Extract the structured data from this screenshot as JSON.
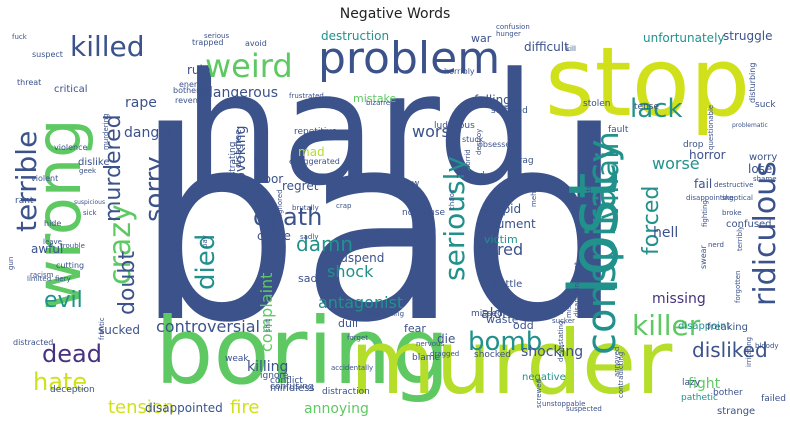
{
  "title": "Negative Words",
  "colors": {
    "navy": "#3b528b",
    "indigo": "#46327e",
    "purple": "#482878",
    "blue": "#31688e",
    "teal": "#21918c",
    "teal_light": "#1fa187",
    "green": "#5ec962",
    "lime": "#b5de2b",
    "yellow": "#d0e11c"
  },
  "words": [
    {
      "text": "bad",
      "color": "navy"
    },
    {
      "text": "hard",
      "color": "navy"
    },
    {
      "text": "boring",
      "color": "green"
    },
    {
      "text": "murder",
      "color": "lime"
    },
    {
      "text": "stop",
      "color": "yellow"
    },
    {
      "text": "wrong",
      "color": "green"
    },
    {
      "text": "lost",
      "color": "teal"
    },
    {
      "text": "problem",
      "color": "navy"
    },
    {
      "text": "conspiracy",
      "color": "teal"
    },
    {
      "text": "ridiculous",
      "color": "navy"
    },
    {
      "text": "killer",
      "color": "green"
    },
    {
      "text": "weird",
      "color": "green"
    },
    {
      "text": "killed",
      "color": "navy"
    },
    {
      "text": "terrible",
      "color": "navy"
    },
    {
      "text": "lack",
      "color": "teal"
    },
    {
      "text": "sorry",
      "color": "navy"
    },
    {
      "text": "crazy",
      "color": "green"
    },
    {
      "text": "murdered",
      "color": "navy"
    },
    {
      "text": "doubt",
      "color": "navy"
    },
    {
      "text": "death",
      "color": "navy"
    },
    {
      "text": "seriously",
      "color": "teal"
    },
    {
      "text": "died",
      "color": "teal"
    },
    {
      "text": "damn",
      "color": "teal"
    },
    {
      "text": "villain",
      "color": "teal"
    },
    {
      "text": "forced",
      "color": "teal"
    },
    {
      "text": "evil",
      "color": "teal"
    },
    {
      "text": "dead",
      "color": "indigo"
    },
    {
      "text": "hate",
      "color": "yellow"
    },
    {
      "text": "bomb",
      "color": "teal"
    },
    {
      "text": "tension",
      "color": "yellow"
    },
    {
      "text": "fire",
      "color": "yellow"
    },
    {
      "text": "disliked",
      "color": "navy"
    },
    {
      "text": "antagonist",
      "color": "teal"
    },
    {
      "text": "controversial",
      "color": "navy"
    },
    {
      "text": "worse",
      "color": "teal"
    },
    {
      "text": "shock",
      "color": "teal"
    },
    {
      "text": "hell",
      "color": "navy"
    },
    {
      "text": "fight",
      "color": "green"
    },
    {
      "text": "danger",
      "color": "navy"
    },
    {
      "text": "dangerous",
      "color": "navy"
    },
    {
      "text": "worst",
      "color": "navy"
    },
    {
      "text": "rape",
      "color": "navy"
    },
    {
      "text": "alone",
      "color": "navy"
    },
    {
      "text": "complaint",
      "color": "green"
    },
    {
      "text": "provoking",
      "color": "navy"
    },
    {
      "text": "missing",
      "color": "indigo"
    },
    {
      "text": "bored",
      "color": "navy"
    },
    {
      "text": "annoying",
      "color": "green"
    },
    {
      "text": "disappointed",
      "color": "navy"
    },
    {
      "text": "shocking",
      "color": "navy"
    },
    {
      "text": "argument",
      "color": "navy"
    },
    {
      "text": "killing",
      "color": "navy"
    },
    {
      "text": "unfortunately",
      "color": "teal"
    },
    {
      "text": "struggle",
      "color": "navy"
    },
    {
      "text": "stupid",
      "color": "navy"
    },
    {
      "text": "crime",
      "color": "navy"
    },
    {
      "text": "difficult",
      "color": "navy"
    },
    {
      "text": "destruction",
      "color": "teal"
    },
    {
      "text": "mistake",
      "color": "green"
    },
    {
      "text": "dull",
      "color": "navy"
    },
    {
      "text": "sad",
      "color": "navy"
    },
    {
      "text": "die",
      "color": "navy"
    },
    {
      "text": "waste",
      "color": "navy"
    },
    {
      "text": "odd",
      "color": "navy"
    },
    {
      "text": "fear",
      "color": "navy"
    },
    {
      "text": "victim",
      "color": "teal"
    },
    {
      "text": "regret",
      "color": "navy"
    },
    {
      "text": "war",
      "color": "navy"
    },
    {
      "text": "falling",
      "color": "navy"
    },
    {
      "text": "mad",
      "color": "lime"
    },
    {
      "text": "awful",
      "color": "navy"
    },
    {
      "text": "ruin",
      "color": "navy"
    },
    {
      "text": "lose",
      "color": "navy"
    },
    {
      "text": "fail",
      "color": "navy"
    },
    {
      "text": "horror",
      "color": "navy"
    },
    {
      "text": "suspend",
      "color": "navy"
    },
    {
      "text": "sucked",
      "color": "navy"
    },
    {
      "text": "negative",
      "color": "teal"
    },
    {
      "text": "strange",
      "color": "navy"
    },
    {
      "text": "battle",
      "color": "navy"
    },
    {
      "text": "mindless",
      "color": "navy"
    },
    {
      "text": "confused",
      "color": "navy"
    },
    {
      "text": "disappoint",
      "color": "teal"
    },
    {
      "text": "freaking",
      "color": "navy"
    },
    {
      "text": "conflict",
      "color": "navy"
    },
    {
      "text": "poor",
      "color": "navy"
    },
    {
      "text": "critical",
      "color": "navy"
    },
    {
      "text": "dislike",
      "color": "navy"
    },
    {
      "text": "worry",
      "color": "navy"
    },
    {
      "text": "deception",
      "color": "navy"
    },
    {
      "text": "bother",
      "color": "navy"
    },
    {
      "text": "failed",
      "color": "navy"
    },
    {
      "text": "lazy",
      "color": "navy"
    },
    {
      "text": "pathetic",
      "color": "teal"
    },
    {
      "text": "shocked",
      "color": "navy"
    },
    {
      "text": "blame",
      "color": "navy"
    },
    {
      "text": "missed",
      "color": "navy"
    },
    {
      "text": "ignore",
      "color": "navy"
    },
    {
      "text": "weak",
      "color": "navy"
    },
    {
      "text": "confusing",
      "color": "navy"
    },
    {
      "text": "distraction",
      "color": "navy"
    },
    {
      "text": "nonsense",
      "color": "navy"
    },
    {
      "text": "low",
      "color": "navy"
    },
    {
      "text": "ruined",
      "color": "navy"
    },
    {
      "text": "stolen",
      "color": "navy"
    },
    {
      "text": "lies",
      "color": "navy"
    },
    {
      "text": "fault",
      "color": "navy"
    },
    {
      "text": "tense",
      "color": "navy"
    },
    {
      "text": "drop",
      "color": "navy"
    },
    {
      "text": "drag",
      "color": "navy"
    },
    {
      "text": "racist",
      "color": "navy"
    },
    {
      "text": "stopped",
      "color": "navy"
    },
    {
      "text": "frustrating",
      "color": "navy"
    },
    {
      "text": "suck",
      "color": "navy"
    },
    {
      "text": "suspect",
      "color": "navy"
    },
    {
      "text": "trapped",
      "color": "navy"
    },
    {
      "text": "avoid",
      "color": "navy"
    },
    {
      "text": "disagree",
      "color": "navy"
    },
    {
      "text": "repetitive",
      "color": "navy"
    },
    {
      "text": "suffered",
      "color": "navy"
    },
    {
      "text": "ludicrous",
      "color": "navy"
    },
    {
      "text": "horribly",
      "color": "navy"
    },
    {
      "text": "stuck",
      "color": "navy"
    },
    {
      "text": "obsessed",
      "color": "navy"
    },
    {
      "text": "rant",
      "color": "navy"
    },
    {
      "text": "violent",
      "color": "navy"
    },
    {
      "text": "hide",
      "color": "navy"
    },
    {
      "text": "threat",
      "color": "navy"
    },
    {
      "text": "fuck",
      "color": "navy"
    },
    {
      "text": "bothered",
      "color": "navy"
    },
    {
      "text": "revenge",
      "color": "navy"
    },
    {
      "text": "enemy",
      "color": "navy"
    },
    {
      "text": "violence",
      "color": "navy"
    },
    {
      "text": "geek",
      "color": "navy"
    },
    {
      "text": "sick",
      "color": "navy"
    },
    {
      "text": "cutting",
      "color": "navy"
    },
    {
      "text": "limited",
      "color": "navy"
    },
    {
      "text": "fiery",
      "color": "navy"
    },
    {
      "text": "racism",
      "color": "navy"
    },
    {
      "text": "leave",
      "color": "navy"
    },
    {
      "text": "trouble",
      "color": "navy"
    },
    {
      "text": "distracted",
      "color": "navy"
    },
    {
      "text": "frantic",
      "color": "navy"
    },
    {
      "text": "gun",
      "color": "navy"
    },
    {
      "text": "murdering",
      "color": "navy"
    },
    {
      "text": "ugh",
      "color": "navy"
    },
    {
      "text": "exaggerated",
      "color": "navy"
    },
    {
      "text": "bizarre",
      "color": "navy"
    },
    {
      "text": "brutally",
      "color": "navy"
    },
    {
      "text": "tortured",
      "color": "navy"
    },
    {
      "text": "ignored",
      "color": "navy"
    },
    {
      "text": "shit",
      "color": "navy"
    },
    {
      "text": "accidentally",
      "color": "navy"
    },
    {
      "text": "questioning",
      "color": "navy"
    },
    {
      "text": "chaos",
      "color": "navy"
    },
    {
      "text": "nervous",
      "color": "navy"
    },
    {
      "text": "dragged",
      "color": "navy"
    },
    {
      "text": "horrid",
      "color": "navy"
    },
    {
      "text": "meh",
      "color": "navy"
    },
    {
      "text": "stereotype",
      "color": "navy"
    },
    {
      "text": "disappointing",
      "color": "navy"
    },
    {
      "text": "destructive",
      "color": "navy"
    },
    {
      "text": "skeptical",
      "color": "navy"
    },
    {
      "text": "broke",
      "color": "navy"
    },
    {
      "text": "nerd",
      "color": "navy"
    },
    {
      "text": "swear",
      "color": "navy"
    },
    {
      "text": "terribly",
      "color": "navy"
    },
    {
      "text": "forgotten",
      "color": "navy"
    },
    {
      "text": "questionable",
      "color": "navy"
    },
    {
      "text": "problematic",
      "color": "navy"
    },
    {
      "text": "disturbing",
      "color": "navy"
    },
    {
      "text": "confusion",
      "color": "navy"
    },
    {
      "text": "hunger",
      "color": "navy"
    },
    {
      "text": "kill",
      "color": "navy"
    },
    {
      "text": "destroy",
      "color": "navy"
    },
    {
      "text": "annoyed",
      "color": "navy"
    },
    {
      "text": "suspected",
      "color": "navy"
    },
    {
      "text": "contradicting",
      "color": "navy"
    },
    {
      "text": "disappointment",
      "color": "navy"
    },
    {
      "text": "screwed",
      "color": "navy"
    },
    {
      "text": "devastating",
      "color": "navy"
    },
    {
      "text": "unstoppable",
      "color": "navy"
    },
    {
      "text": "irritating",
      "color": "navy"
    },
    {
      "text": "fighting",
      "color": "navy"
    },
    {
      "text": "bloody",
      "color": "navy"
    },
    {
      "text": "frustrated",
      "color": "navy"
    },
    {
      "text": "forget",
      "color": "navy"
    },
    {
      "text": "miss",
      "color": "navy"
    },
    {
      "text": "unethical",
      "color": "navy"
    },
    {
      "text": "crap",
      "color": "navy"
    },
    {
      "text": "pay",
      "color": "navy"
    },
    {
      "text": "suspicious",
      "color": "navy"
    },
    {
      "text": "sadly",
      "color": "navy"
    },
    {
      "text": "sucker",
      "color": "navy"
    },
    {
      "text": "traumatized",
      "color": "navy"
    },
    {
      "text": "shame",
      "color": "navy"
    },
    {
      "text": "serious",
      "color": "navy"
    },
    {
      "text": "struggled",
      "color": "navy"
    },
    {
      "text": "bored",
      "color": "navy"
    },
    {
      "text": "cut",
      "color": "navy"
    },
    {
      "text": "dangerous",
      "color": "navy"
    }
  ]
}
